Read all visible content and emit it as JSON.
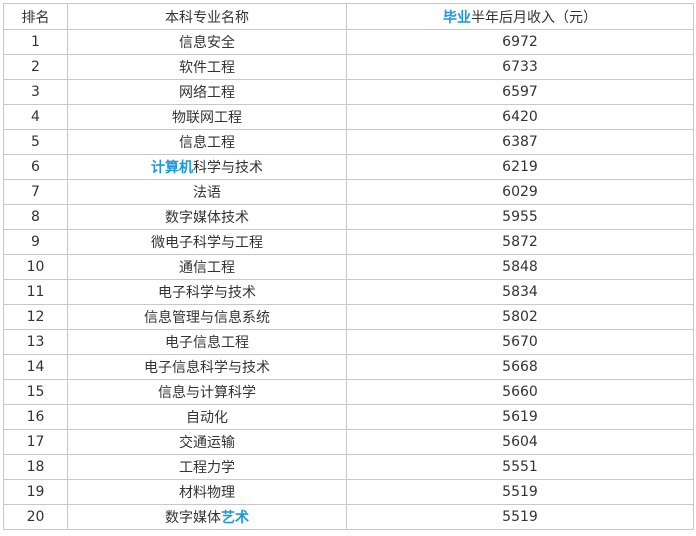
{
  "table": {
    "header": {
      "rank": "排名",
      "major": "本科专业名称",
      "income": [
        {
          "link": "毕业"
        },
        "半年后月收入（元）"
      ]
    },
    "rows": [
      {
        "rank": 1,
        "major": [
          "信息安全"
        ],
        "income": 6972
      },
      {
        "rank": 2,
        "major": [
          "软件工程"
        ],
        "income": 6733
      },
      {
        "rank": 3,
        "major": [
          "网络工程"
        ],
        "income": 6597
      },
      {
        "rank": 4,
        "major": [
          "物联网工程"
        ],
        "income": 6420
      },
      {
        "rank": 5,
        "major": [
          "信息工程"
        ],
        "income": 6387
      },
      {
        "rank": 6,
        "major": [
          {
            "link": "计算机"
          },
          "科学与技术"
        ],
        "income": 6219
      },
      {
        "rank": 7,
        "major": [
          "法语"
        ],
        "income": 6029
      },
      {
        "rank": 8,
        "major": [
          "数字媒体技术"
        ],
        "income": 5955
      },
      {
        "rank": 9,
        "major": [
          "微电子科学与工程"
        ],
        "income": 5872
      },
      {
        "rank": 10,
        "major": [
          "通信工程"
        ],
        "income": 5848
      },
      {
        "rank": 11,
        "major": [
          "电子科学与技术"
        ],
        "income": 5834
      },
      {
        "rank": 12,
        "major": [
          "信息管理与信息系统"
        ],
        "income": 5802
      },
      {
        "rank": 13,
        "major": [
          "电子信息工程"
        ],
        "income": 5670
      },
      {
        "rank": 14,
        "major": [
          "电子信息科学与技术"
        ],
        "income": 5668
      },
      {
        "rank": 15,
        "major": [
          "信息与计算科学"
        ],
        "income": 5660
      },
      {
        "rank": 16,
        "major": [
          "自动化"
        ],
        "income": 5619
      },
      {
        "rank": 17,
        "major": [
          "交通运输"
        ],
        "income": 5604
      },
      {
        "rank": 18,
        "major": [
          "工程力学"
        ],
        "income": 5551
      },
      {
        "rank": 19,
        "major": [
          "材料物理"
        ],
        "income": 5519
      },
      {
        "rank": 20,
        "major": [
          "数字媒体",
          {
            "link": "艺术"
          }
        ],
        "income": 5519
      }
    ]
  }
}
